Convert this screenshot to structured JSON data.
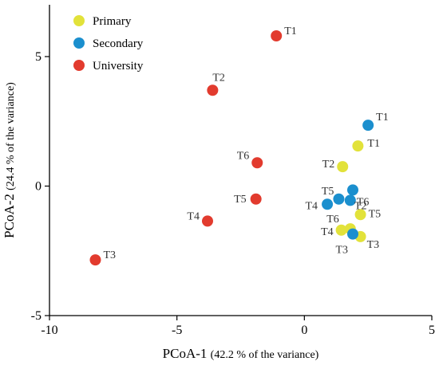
{
  "chart_data": {
    "type": "scatter",
    "xlabel": "PCoA-1",
    "xlabel_note": "(42.2 % of the variance)",
    "ylabel": "PCoA-2",
    "ylabel_note": "(24.4 % of the variance)",
    "xlim": [
      -10,
      5
    ],
    "ylim": [
      -5,
      7
    ],
    "xticks": [
      -10,
      -5,
      0,
      5
    ],
    "yticks": [
      -5,
      0,
      5
    ],
    "grid": false,
    "legend_position": "top-left",
    "series": [
      {
        "name": "Primary",
        "color": "#e2e23a",
        "points": [
          {
            "x": 2.1,
            "y": 1.55,
            "label": "T1"
          },
          {
            "x": 1.5,
            "y": 0.75,
            "label": "T2"
          },
          {
            "x": 2.2,
            "y": -1.95,
            "label": "T3"
          },
          {
            "x": 1.45,
            "y": -1.7,
            "label": "T4"
          },
          {
            "x": 2.2,
            "y": -1.1,
            "label": "T5"
          },
          {
            "x": 1.8,
            "y": -1.65,
            "label": "T6"
          }
        ]
      },
      {
        "name": "Secondary",
        "color": "#1b8fce",
        "points": [
          {
            "x": 2.5,
            "y": 2.35,
            "label": "T1"
          },
          {
            "x": 1.9,
            "y": -0.15,
            "label": "T2"
          },
          {
            "x": 1.9,
            "y": -1.85,
            "label": "T3"
          },
          {
            "x": 0.9,
            "y": -0.7,
            "label": "T4"
          },
          {
            "x": 1.35,
            "y": -0.5,
            "label": "T5"
          },
          {
            "x": 1.8,
            "y": -0.55,
            "label": "T6"
          }
        ]
      },
      {
        "name": "University",
        "color": "#e23b2e",
        "points": [
          {
            "x": -1.1,
            "y": 5.8,
            "label": "T1"
          },
          {
            "x": -3.6,
            "y": 3.7,
            "label": "T2"
          },
          {
            "x": -8.2,
            "y": -2.85,
            "label": "T3"
          },
          {
            "x": -3.8,
            "y": -1.35,
            "label": "T4"
          },
          {
            "x": -1.9,
            "y": -0.5,
            "label": "T5"
          },
          {
            "x": -1.85,
            "y": 0.9,
            "label": "T6"
          }
        ]
      }
    ]
  }
}
